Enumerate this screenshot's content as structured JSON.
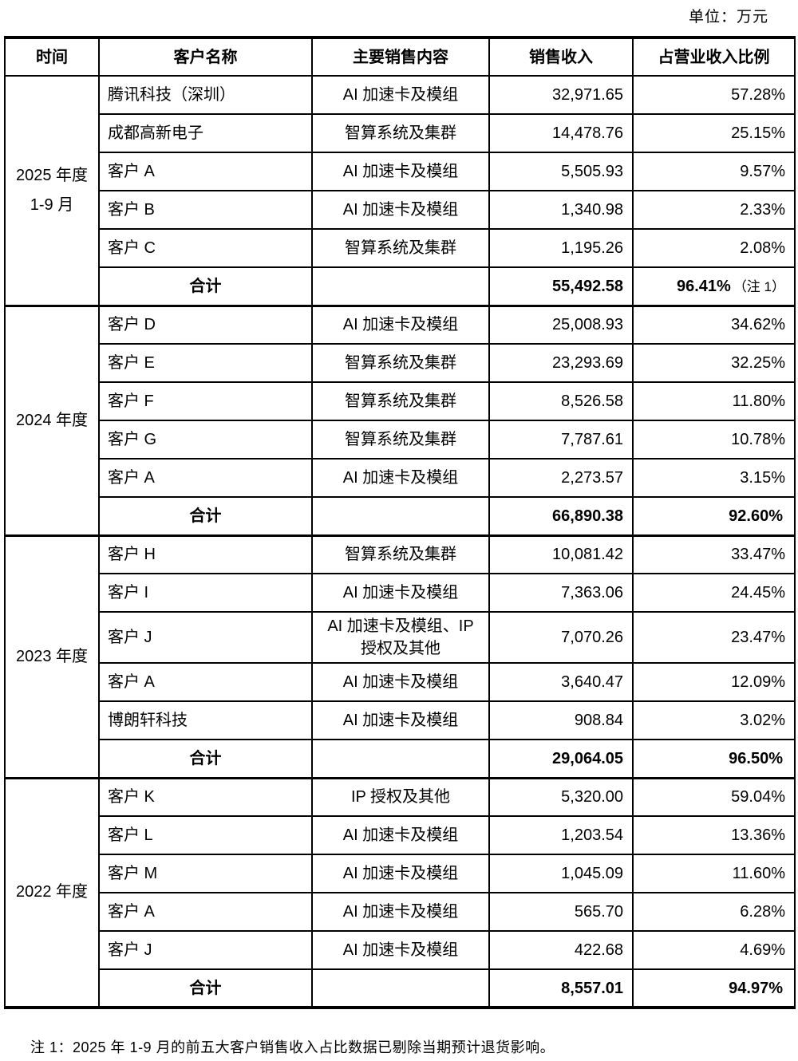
{
  "unit_label": "单位：万元",
  "table": {
    "headers": [
      "时间",
      "客户名称",
      "主要销售内容",
      "销售收入",
      "占营业收入比例"
    ],
    "sections": [
      {
        "period_lines": [
          "2025 年度",
          "1-9 月"
        ],
        "rows": [
          {
            "customer": "腾讯科技（深圳）",
            "content": "AI 加速卡及模组",
            "revenue": "32,971.65",
            "ratio": "57.28%"
          },
          {
            "customer": "成都高新电子",
            "content": "智算系统及集群",
            "revenue": "14,478.76",
            "ratio": "25.15%"
          },
          {
            "customer": "客户 A",
            "content": "AI 加速卡及模组",
            "revenue": "5,505.93",
            "ratio": "9.57%"
          },
          {
            "customer": "客户 B",
            "content": "AI 加速卡及模组",
            "revenue": "1,340.98",
            "ratio": "2.33%"
          },
          {
            "customer": "客户 C",
            "content": "智算系统及集群",
            "revenue": "1,195.26",
            "ratio": "2.08%"
          }
        ],
        "total": {
          "label": "合计",
          "revenue": "55,492.58",
          "ratio": "96.41%",
          "ratio_note": "（注 1）"
        }
      },
      {
        "period_lines": [
          "2024 年度"
        ],
        "rows": [
          {
            "customer": "客户 D",
            "content": "AI 加速卡及模组",
            "revenue": "25,008.93",
            "ratio": "34.62%"
          },
          {
            "customer": "客户 E",
            "content": "智算系统及集群",
            "revenue": "23,293.69",
            "ratio": "32.25%"
          },
          {
            "customer": "客户 F",
            "content": "智算系统及集群",
            "revenue": "8,526.58",
            "ratio": "11.80%"
          },
          {
            "customer": "客户 G",
            "content": "智算系统及集群",
            "revenue": "7,787.61",
            "ratio": "10.78%"
          },
          {
            "customer": "客户 A",
            "content": "AI 加速卡及模组",
            "revenue": "2,273.57",
            "ratio": "3.15%"
          }
        ],
        "total": {
          "label": "合计",
          "revenue": "66,890.38",
          "ratio": "92.60%",
          "ratio_note": ""
        }
      },
      {
        "period_lines": [
          "2023 年度"
        ],
        "rows": [
          {
            "customer": "客户 H",
            "content": "智算系统及集群",
            "revenue": "10,081.42",
            "ratio": "33.47%"
          },
          {
            "customer": "客户 I",
            "content": "AI 加速卡及模组",
            "revenue": "7,363.06",
            "ratio": "24.45%"
          },
          {
            "customer": "客户 J",
            "content": "AI 加速卡及模组、IP 授权及其他",
            "revenue": "7,070.26",
            "ratio": "23.47%"
          },
          {
            "customer": "客户 A",
            "content": "AI 加速卡及模组",
            "revenue": "3,640.47",
            "ratio": "12.09%"
          },
          {
            "customer": "博朗轩科技",
            "content": "AI 加速卡及模组",
            "revenue": "908.84",
            "ratio": "3.02%"
          }
        ],
        "total": {
          "label": "合计",
          "revenue": "29,064.05",
          "ratio": "96.50%",
          "ratio_note": ""
        }
      },
      {
        "period_lines": [
          "2022 年度"
        ],
        "rows": [
          {
            "customer": "客户 K",
            "content": "IP 授权及其他",
            "revenue": "5,320.00",
            "ratio": "59.04%"
          },
          {
            "customer": "客户 L",
            "content": "AI 加速卡及模组",
            "revenue": "1,203.54",
            "ratio": "13.36%"
          },
          {
            "customer": "客户 M",
            "content": "AI 加速卡及模组",
            "revenue": "1,045.09",
            "ratio": "11.60%"
          },
          {
            "customer": "客户 A",
            "content": "AI 加速卡及模组",
            "revenue": "565.70",
            "ratio": "6.28%"
          },
          {
            "customer": "客户 J",
            "content": "AI 加速卡及模组",
            "revenue": "422.68",
            "ratio": "4.69%"
          }
        ],
        "total": {
          "label": "合计",
          "revenue": "8,557.01",
          "ratio": "94.97%",
          "ratio_note": ""
        }
      }
    ]
  },
  "footnote": "注 1：2025 年 1-9 月的前五大客户销售收入占比数据已剔除当期预计退货影响。"
}
